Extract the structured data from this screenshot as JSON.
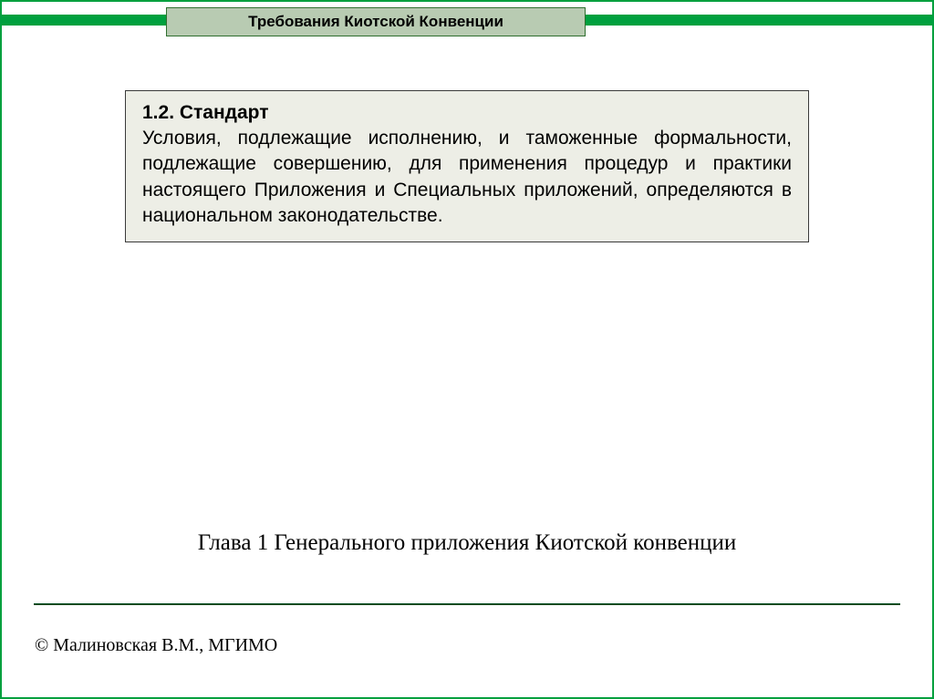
{
  "colors": {
    "border_green": "#00a03e",
    "title_bg": "#b8cbb2",
    "title_border": "#2f6f2f",
    "content_bg": "#edeee6",
    "content_border": "#3a3a3a",
    "divider": "#004b20",
    "text": "#000000",
    "background": "#ffffff"
  },
  "typography": {
    "main_font": "Arial",
    "serif_font": "Times New Roman",
    "title_size_pt": 17,
    "body_size_pt": 21,
    "chapter_size_pt": 25,
    "footer_size_pt": 20
  },
  "header": {
    "title": "Требования Киотской Конвенции"
  },
  "content": {
    "heading": "1.2. Стандарт",
    "body": "Условия, подлежащие исполнению, и таможенные формальности, подлежащие совершению, для применения процедур и практики настоящего Приложения и Специальных приложений, определяются в национальном законодательстве."
  },
  "chapter": {
    "text": "Глава 1 Генерального приложения Киотской конвенции"
  },
  "footer": {
    "text": "© Малиновская В.М., МГИМО"
  }
}
